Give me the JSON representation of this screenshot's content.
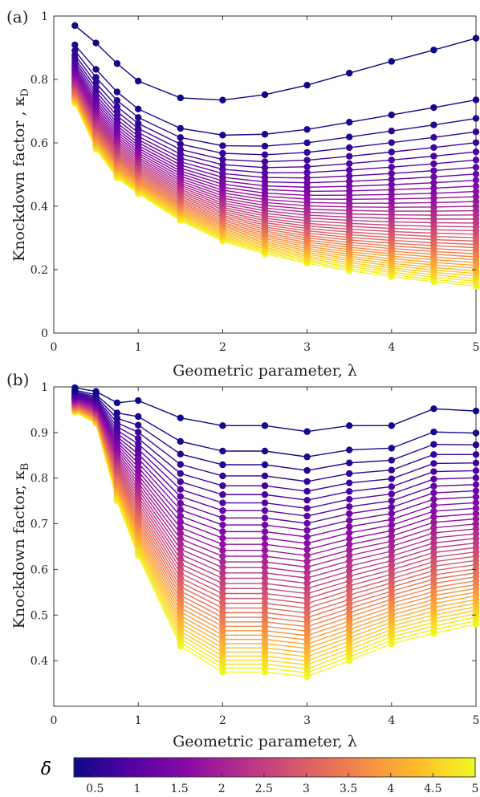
{
  "chart_data": [
    {
      "type": "line",
      "panel_label": "(a)",
      "xlabel": "Geometric parameter, λ",
      "ylabel": "Knockdown factor , κ",
      "ylabel_sub": "D",
      "xlim": [
        0,
        5
      ],
      "ylim": [
        0,
        1
      ],
      "xticks": [
        0,
        1,
        2,
        3,
        4,
        5
      ],
      "yticks": [
        0,
        0.2,
        0.4,
        0.6,
        0.8,
        1
      ],
      "ytick_labels": [
        "0",
        "0.2",
        "0.4",
        "0.6",
        "0.8",
        "1"
      ],
      "x": [
        0.25,
        0.5,
        0.75,
        1,
        1.5,
        2,
        2.5,
        3,
        3.5,
        4,
        4.5,
        5
      ],
      "first_curve": [
        0.97,
        0.915,
        0.85,
        0.795,
        0.742,
        0.735,
        0.752,
        0.782,
        0.82,
        0.857,
        0.893,
        0.93
      ],
      "last_curve": [
        0.725,
        0.58,
        0.49,
        0.44,
        0.355,
        0.29,
        0.25,
        0.22,
        0.197,
        0.178,
        0.162,
        0.148
      ],
      "n_curves": 40,
      "marker": "circle",
      "grid": false
    },
    {
      "type": "line",
      "panel_label": "(b)",
      "xlabel": "Geometric parameter, λ",
      "ylabel": "Knockdown factor, κ",
      "ylabel_sub": "B",
      "xlim": [
        0,
        5
      ],
      "ylim": [
        0.3,
        1
      ],
      "xticks": [
        0,
        1,
        2,
        3,
        4,
        5
      ],
      "yticks": [
        0.4,
        0.5,
        0.6,
        0.7,
        0.8,
        0.9,
        1
      ],
      "ytick_labels": [
        "0.4",
        "0.5",
        "0.6",
        "0.7",
        "0.8",
        "0.9",
        "1"
      ],
      "x": [
        0.25,
        0.5,
        0.75,
        1,
        1.5,
        2,
        2.5,
        3,
        3.5,
        4,
        4.5,
        5
      ],
      "first_curve": [
        0.998,
        0.99,
        0.965,
        0.97,
        0.932,
        0.915,
        0.915,
        0.902,
        0.915,
        0.915,
        0.952,
        0.947
      ],
      "last_curve": [
        0.945,
        0.92,
        0.75,
        0.63,
        0.432,
        0.375,
        0.375,
        0.365,
        0.4,
        0.437,
        0.46,
        0.48
      ],
      "n_curves": 40,
      "marker": "circle",
      "grid": false
    }
  ],
  "colorbar": {
    "label": "δ̄",
    "range": [
      0.25,
      5
    ],
    "ticks": [
      0.5,
      1,
      1.5,
      2,
      2.5,
      3,
      3.5,
      4,
      4.5,
      5
    ],
    "tick_labels": [
      "0.5",
      "1",
      "1.5",
      "2",
      "2.5",
      "3",
      "3.5",
      "4",
      "4.5",
      "5"
    ],
    "colormap": "plasma",
    "colors": [
      "#0d0887",
      "#5302a3",
      "#8b0aa5",
      "#b83289",
      "#db5c68",
      "#f48849",
      "#febd2a",
      "#f0f921"
    ]
  }
}
